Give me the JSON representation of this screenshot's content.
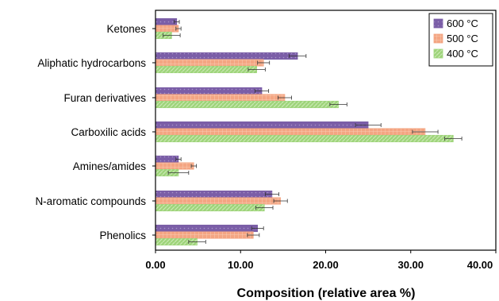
{
  "chart_data": {
    "type": "bar",
    "orientation": "horizontal",
    "categories": [
      "Ketones",
      "Aliphatic hydrocarbons",
      "Furan derivatives",
      "Carboxilic acids",
      "Amines/amides",
      "N-aromatic compounds",
      "Phenolics"
    ],
    "series": [
      {
        "name": "600 °C",
        "color": "#7b5ea7",
        "values": [
          2.5,
          16.7,
          12.5,
          25.0,
          2.7,
          13.7,
          12.0
        ],
        "errors": [
          0.3,
          1.0,
          0.8,
          1.5,
          0.3,
          0.8,
          0.7
        ]
      },
      {
        "name": "500 °C",
        "color": "#f4a582",
        "values": [
          2.7,
          12.7,
          15.2,
          31.7,
          4.5,
          14.7,
          11.5
        ],
        "errors": [
          0.3,
          0.7,
          0.8,
          1.5,
          0.3,
          0.8,
          0.7
        ]
      },
      {
        "name": "400 °C",
        "color": "#9ed47a",
        "values": [
          1.9,
          11.9,
          21.5,
          35.0,
          2.7,
          12.8,
          4.9
        ],
        "errors": [
          1.0,
          1.0,
          1.0,
          1.0,
          1.2,
          1.0,
          1.0
        ]
      }
    ],
    "xlabel": "Composition (relative area %)",
    "ylabel": "",
    "xlim": [
      0,
      40
    ],
    "xticks": [
      "0.00",
      "10.00",
      "20.00",
      "30.00",
      "40.00"
    ],
    "grid": false,
    "legend_position": "top-right"
  }
}
